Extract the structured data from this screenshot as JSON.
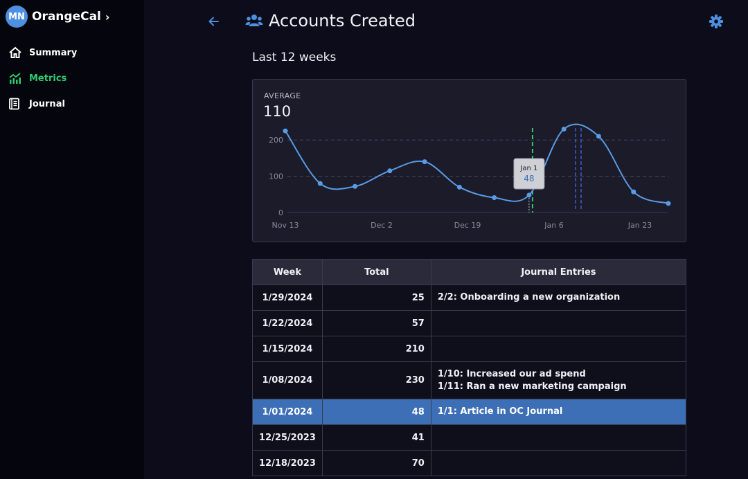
{
  "sidebar": {
    "avatar_initials": "MN",
    "org_name": "OrangeCal",
    "items": [
      {
        "label": "Summary",
        "icon": "home-icon"
      },
      {
        "label": "Metrics",
        "icon": "chart-icon",
        "active": true
      },
      {
        "label": "Journal",
        "icon": "journal-icon"
      }
    ]
  },
  "header": {
    "title": "Accounts Created",
    "title_icon": "users-icon",
    "back_icon": "arrow-left-icon",
    "settings_icon": "gear-icon"
  },
  "range_label": "Last 12 weeks",
  "summary": {
    "average_label": "AVERAGE",
    "average_value": "110"
  },
  "colors": {
    "accent": "#4d8fe0",
    "active_nav": "#2ecc71",
    "selected_row": "#3d6fb6",
    "line": "#5a9be6",
    "marker_today": "#2ecc71",
    "marker_range": "#3d5fd0"
  },
  "chart_data": {
    "type": "line",
    "x": [
      "11/13/2023",
      "11/20/2023",
      "11/27/2023",
      "12/4/2023",
      "12/11/2023",
      "12/18/2023",
      "12/25/2023",
      "1/1/2024",
      "1/8/2024",
      "1/15/2024",
      "1/22/2024",
      "1/29/2024"
    ],
    "values": [
      225,
      80,
      72,
      115,
      140,
      70,
      41,
      48,
      230,
      210,
      57,
      25
    ],
    "ylim": [
      0,
      250
    ],
    "yticks": [
      0,
      100,
      200
    ],
    "xtick_labels": [
      "Nov 13",
      "Dec 2",
      "Dec 19",
      "Jan 6",
      "Jan 23"
    ],
    "grid": true,
    "tooltip": {
      "label": "Jan 1",
      "value": "48"
    }
  },
  "table": {
    "columns": [
      "Week",
      "Total",
      "Journal Entries"
    ],
    "rows": [
      {
        "week": "1/29/2024",
        "total": "25",
        "entries": [
          "2/2: Onboarding a new organization"
        ]
      },
      {
        "week": "1/22/2024",
        "total": "57",
        "entries": []
      },
      {
        "week": "1/15/2024",
        "total": "210",
        "entries": []
      },
      {
        "week": "1/08/2024",
        "total": "230",
        "entries": [
          "1/10: Increased our ad spend",
          "1/11: Ran a new marketing campaign"
        ]
      },
      {
        "week": "1/01/2024",
        "total": "48",
        "entries": [
          "1/1: Article in OC Journal"
        ],
        "selected": true
      },
      {
        "week": "12/25/2023",
        "total": "41",
        "entries": []
      },
      {
        "week": "12/18/2023",
        "total": "70",
        "entries": []
      }
    ]
  }
}
